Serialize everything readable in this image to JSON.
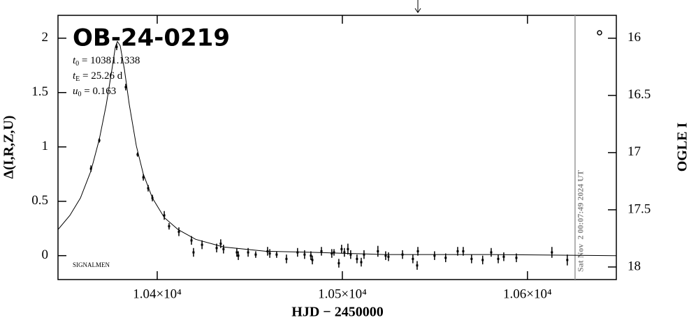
{
  "chart_data": {
    "type": "lightcurve",
    "title": "OB-24-0219",
    "parameters": [
      {
        "symbol": "t",
        "subscript": "0",
        "text": " = 10381.1338"
      },
      {
        "symbol": "t",
        "subscript": "E",
        "text": " = 25.26 d"
      },
      {
        "symbol": "u",
        "subscript": "0",
        "text": " = 0.163"
      }
    ],
    "credit": "SIGNALMEN",
    "timestamp": "Sat Nov  2 00:07:49 2024 UT",
    "x_label": "HJD − 2450000",
    "y_label": "Δ(I,R,Z,U)",
    "y2_label": "OGLE I",
    "xlim": [
      10346.4,
      10648
    ],
    "ylim": [
      -0.22,
      2.21
    ],
    "y2lim": [
      18.11,
      15.8
    ],
    "xticks": [
      {
        "value": 10400,
        "label": "1.04×10⁴"
      },
      {
        "value": 10500,
        "label": "1.05×10⁴"
      },
      {
        "value": 10600,
        "label": "1.06×10⁴"
      }
    ],
    "yticks": [
      0,
      0.5,
      1,
      1.5,
      2
    ],
    "y2ticks": [
      16,
      16.5,
      17,
      17.5,
      18
    ],
    "now_x": 10625.7,
    "arrow_x": 10540.8,
    "series": [
      {
        "kind": "points",
        "color": "#000000",
        "x": [
          10364.2,
          10368.7,
          10378.1,
          10383.0,
          10389.4,
          10392.5,
          10395.1,
          10397.4,
          10403.8,
          10406.4,
          10411.7,
          10418.5,
          10419.6,
          10424.2,
          10432.1,
          10434.3,
          10435.8,
          10443.0,
          10443.8,
          10449.1,
          10453.2,
          10459.6,
          10460.8,
          10464.5,
          10469.8,
          10475.8,
          10479.6,
          10483.0,
          10483.8,
          10488.7,
          10494.3,
          10495.5,
          10498.1,
          10499.6,
          10501.1,
          10503.0,
          10504.5,
          10507.9,
          10510.2,
          10511.7,
          10519.2,
          10523.4,
          10524.9,
          10532.5,
          10538.1,
          10540.4,
          10540.8,
          10549.8,
          10555.8,
          10562.3,
          10565.3,
          10569.8,
          10575.8,
          10580.4,
          10584.2,
          10587.2,
          10594.0,
          10613.2,
          10621.5
        ],
        "values": [
          0.8,
          1.06,
          1.92,
          1.55,
          0.93,
          0.72,
          0.62,
          0.53,
          0.37,
          0.27,
          0.22,
          0.14,
          0.03,
          0.1,
          0.07,
          0.11,
          0.06,
          0.03,
          0.0,
          0.03,
          0.01,
          0.04,
          0.02,
          0.01,
          -0.03,
          0.03,
          0.01,
          0.0,
          -0.04,
          0.04,
          0.02,
          0.03,
          -0.07,
          0.06,
          0.03,
          0.06,
          0.01,
          -0.03,
          -0.06,
          0.01,
          0.04,
          0.0,
          -0.01,
          0.01,
          -0.03,
          -0.09,
          0.04,
          0.0,
          -0.02,
          0.04,
          0.04,
          -0.03,
          -0.04,
          0.03,
          -0.03,
          -0.01,
          -0.02,
          0.03,
          -0.04
        ],
        "errors": [
          0.03,
          0.02,
          0.03,
          0.03,
          0.02,
          0.03,
          0.03,
          0.03,
          0.04,
          0.03,
          0.04,
          0.04,
          0.04,
          0.04,
          0.04,
          0.04,
          0.04,
          0.04,
          0.04,
          0.04,
          0.03,
          0.04,
          0.04,
          0.03,
          0.04,
          0.04,
          0.04,
          0.04,
          0.04,
          0.04,
          0.04,
          0.03,
          0.04,
          0.04,
          0.04,
          0.05,
          0.04,
          0.04,
          0.04,
          0.04,
          0.05,
          0.04,
          0.04,
          0.04,
          0.04,
          0.04,
          0.04,
          0.04,
          0.04,
          0.04,
          0.04,
          0.04,
          0.04,
          0.04,
          0.04,
          0.04,
          0.04,
          0.05,
          0.05
        ]
      },
      {
        "kind": "line",
        "color": "#000000",
        "x": [
          10346.4,
          10352.8,
          10358.5,
          10364.2,
          10368.7,
          10372.5,
          10375.5,
          10377.4,
          10378.5,
          10380.0,
          10382.3,
          10384.9,
          10388.7,
          10392.5,
          10397.4,
          10403.8,
          10411.3,
          10420.8,
          10435.8,
          10458.5,
          10484.9,
          10522.6,
          10579.2,
          10647.9
        ],
        "values": [
          0.24,
          0.37,
          0.53,
          0.78,
          1.07,
          1.39,
          1.71,
          1.92,
          1.97,
          1.93,
          1.71,
          1.39,
          1.01,
          0.75,
          0.53,
          0.35,
          0.24,
          0.15,
          0.08,
          0.04,
          0.03,
          0.01,
          0.01,
          0.0
        ]
      }
    ]
  }
}
